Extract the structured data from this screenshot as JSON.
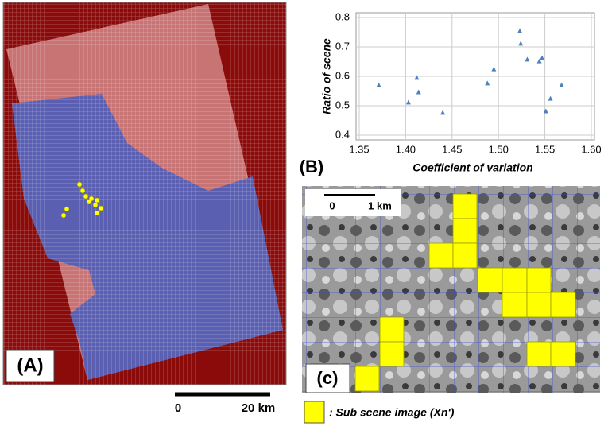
{
  "chart_data": {
    "type": "scatter",
    "x_label": "Coefficient of variation",
    "y_label": "Ratio of scene",
    "color": "#4f81bd",
    "grid": true,
    "x": [
      1.371,
      1.403,
      1.412,
      1.414,
      1.44,
      1.488,
      1.495,
      1.523,
      1.524,
      1.531,
      1.544,
      1.547,
      1.551,
      1.556,
      1.568
    ],
    "values": [
      0.57,
      0.511,
      0.595,
      0.546,
      0.476,
      0.576,
      0.624,
      0.754,
      0.711,
      0.657,
      0.651,
      0.662,
      0.481,
      0.524,
      0.57
    ],
    "xlim": [
      1.35,
      1.6
    ],
    "xticks": [
      1.35,
      {
        "value": 1.4,
        "label": "1.40"
      },
      1.45,
      {
        "value": 1.5,
        "label": "1.50"
      },
      1.55,
      {
        "value": 1.6,
        "label": "1.60"
      }
    ],
    "ylim": [
      0.4,
      0.8
    ],
    "yticks": [
      0.4,
      0.5,
      0.6,
      0.7,
      0.8
    ]
  },
  "panel_a": {
    "label": "(A)",
    "scale": [
      "0",
      "20 km"
    ]
  },
  "panel_b": {
    "label": "(B)"
  },
  "panel_c": {
    "label": "(c)",
    "scale": [
      "0",
      "1 km"
    ]
  },
  "legend": ": Sub scene image (Xn')"
}
